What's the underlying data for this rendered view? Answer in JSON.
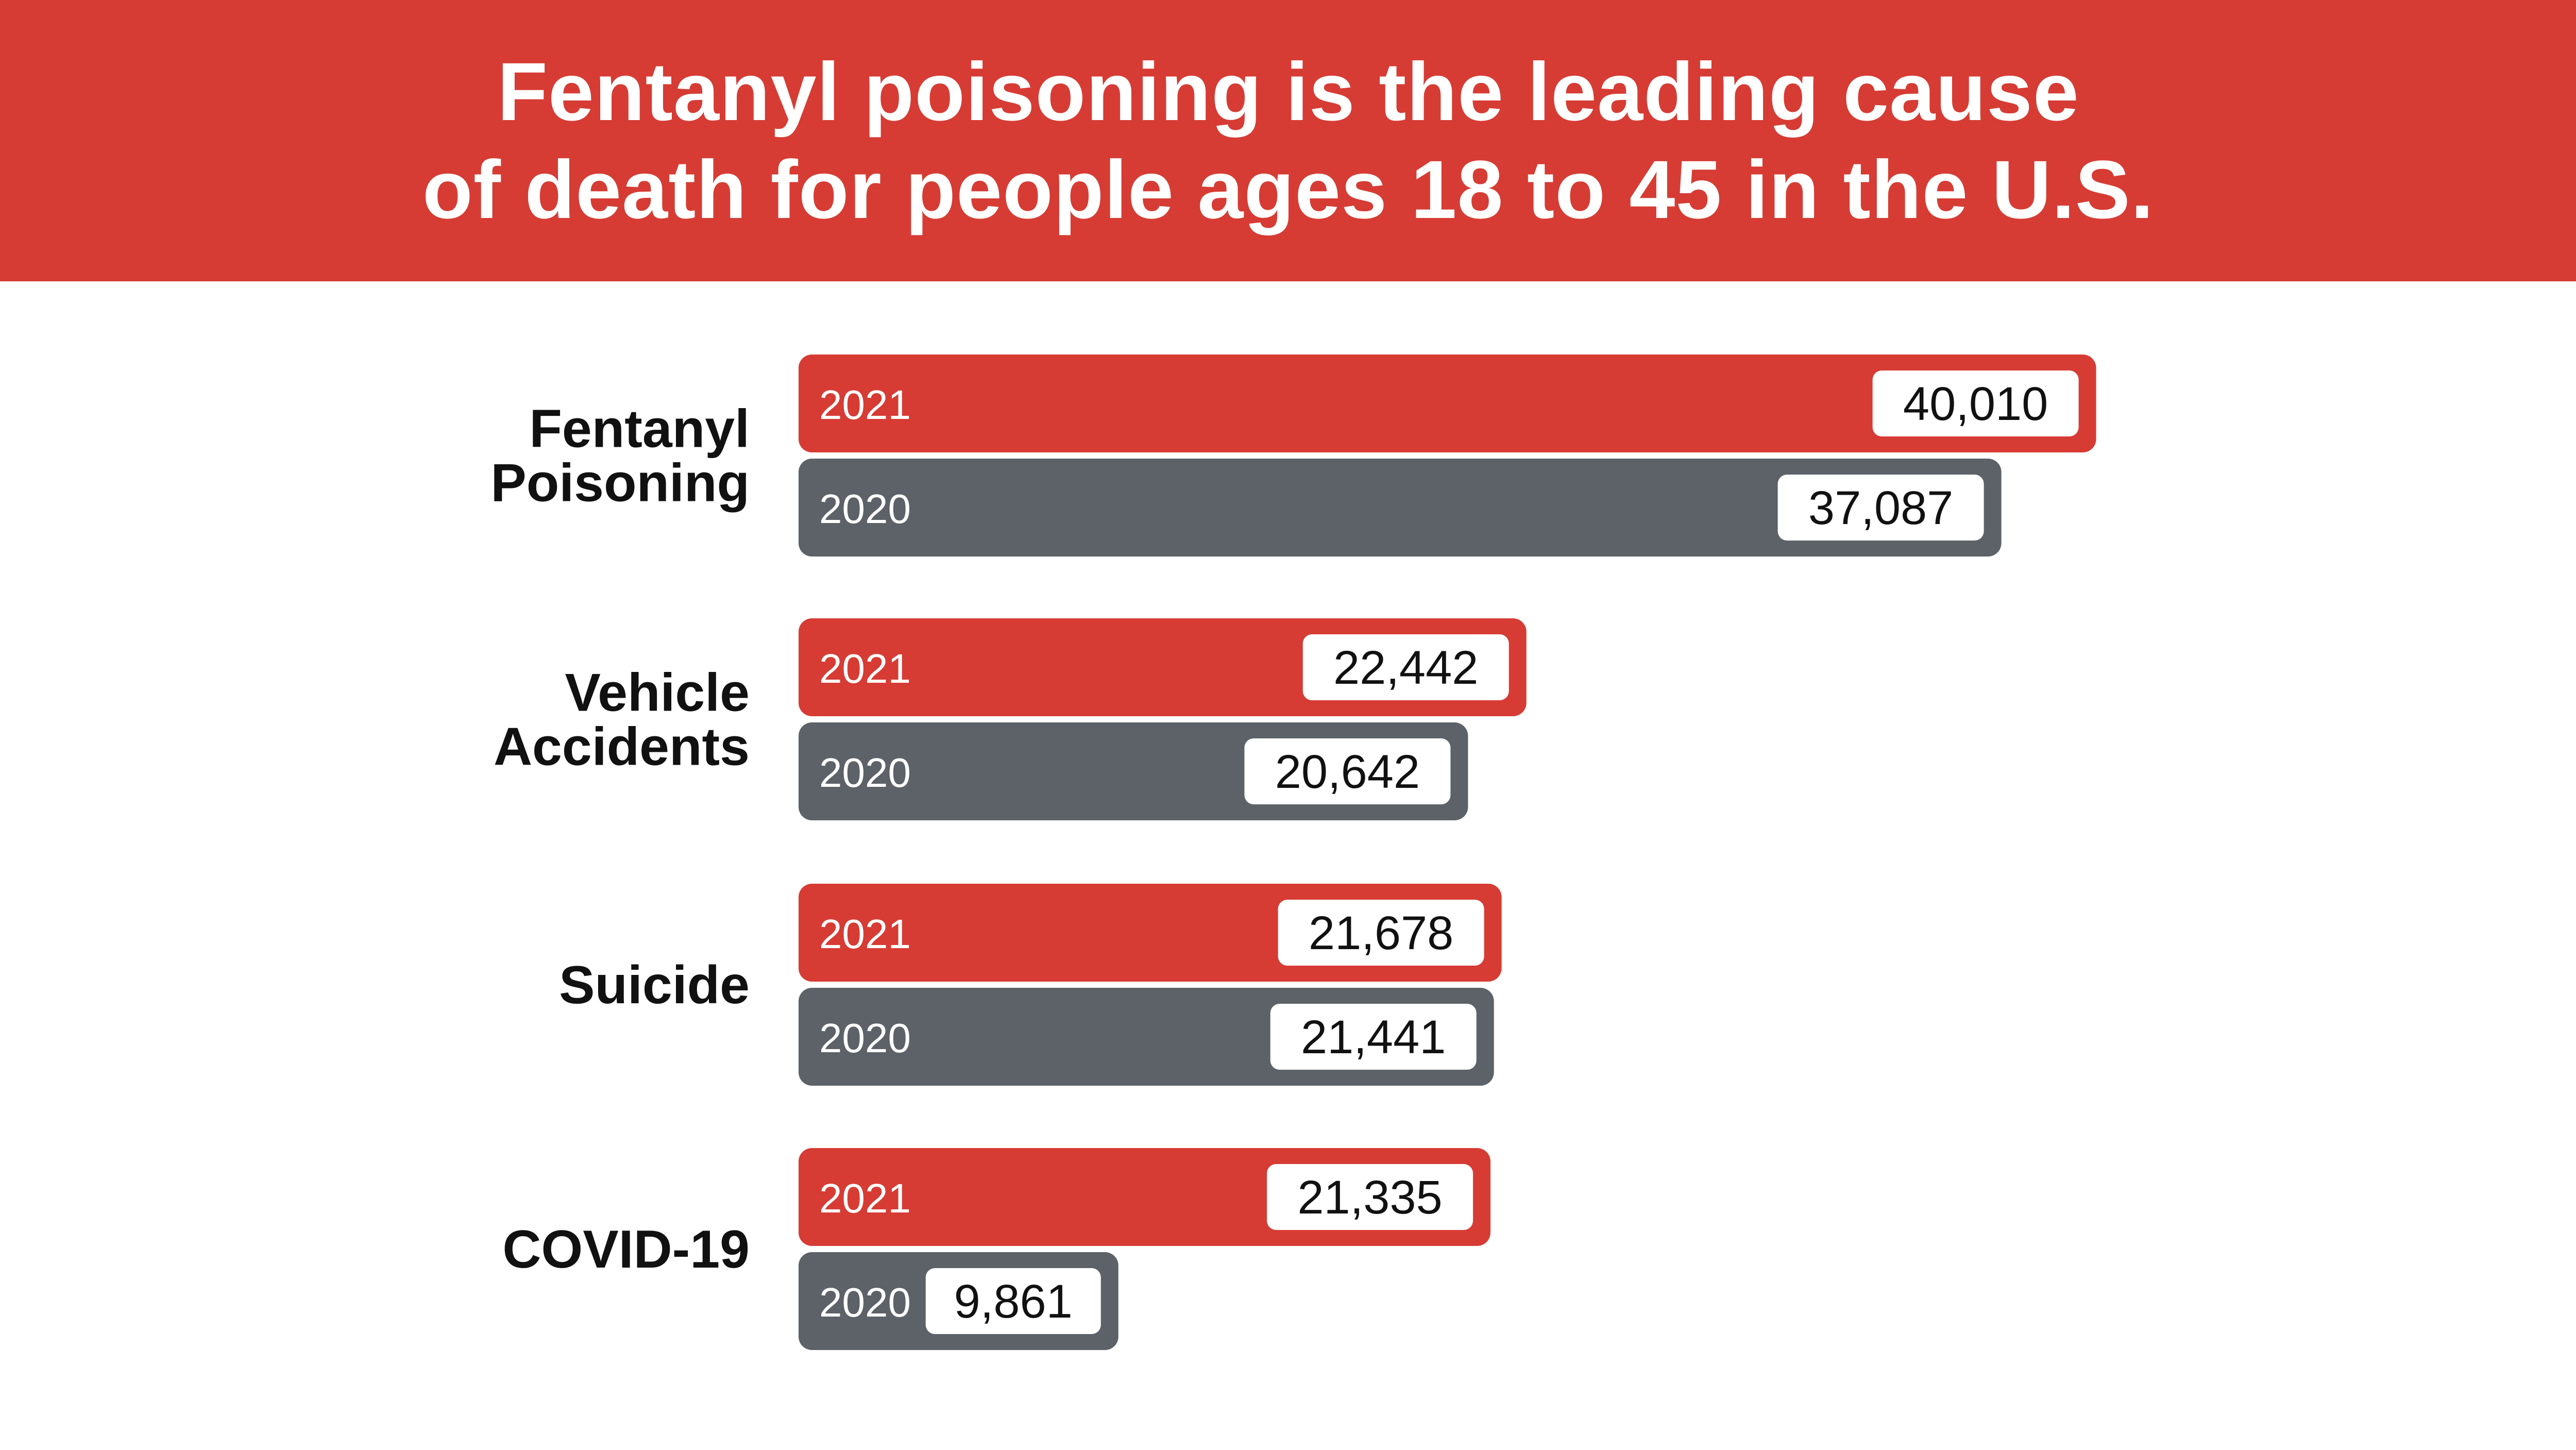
{
  "title_lines": [
    "Fentanyl poisoning is the leading cause",
    "of death for people ages 18 to 45 in the U.S."
  ],
  "colors": {
    "banner": "#d63c34",
    "series_2021": "#d63c34",
    "series_2020": "#5c6268",
    "value_box": "#ffffff",
    "value_text": "#111111",
    "category_text": "#111111"
  },
  "chart_data": {
    "type": "bar",
    "orientation": "horizontal",
    "title": "Fentanyl poisoning is the leading cause of death for people ages 18 to 45 in the U.S.",
    "categories": [
      [
        "Fentanyl",
        "Poisoning"
      ],
      [
        "Vehicle",
        "Accidents"
      ],
      [
        "Suicide"
      ],
      [
        "COVID-19"
      ]
    ],
    "series": [
      {
        "name": "2021",
        "color": "#d63c34",
        "values": [
          40010,
          22442,
          21678,
          21335
        ],
        "labels": [
          "40,010",
          "22,442",
          "21,678",
          "21,335"
        ]
      },
      {
        "name": "2020",
        "color": "#5c6268",
        "values": [
          37087,
          20642,
          21441,
          9861
        ],
        "labels": [
          "37,087",
          "20,642",
          "21,441",
          "9,861"
        ]
      }
    ],
    "axis_visible": false,
    "grid": false,
    "data_labels": true
  }
}
